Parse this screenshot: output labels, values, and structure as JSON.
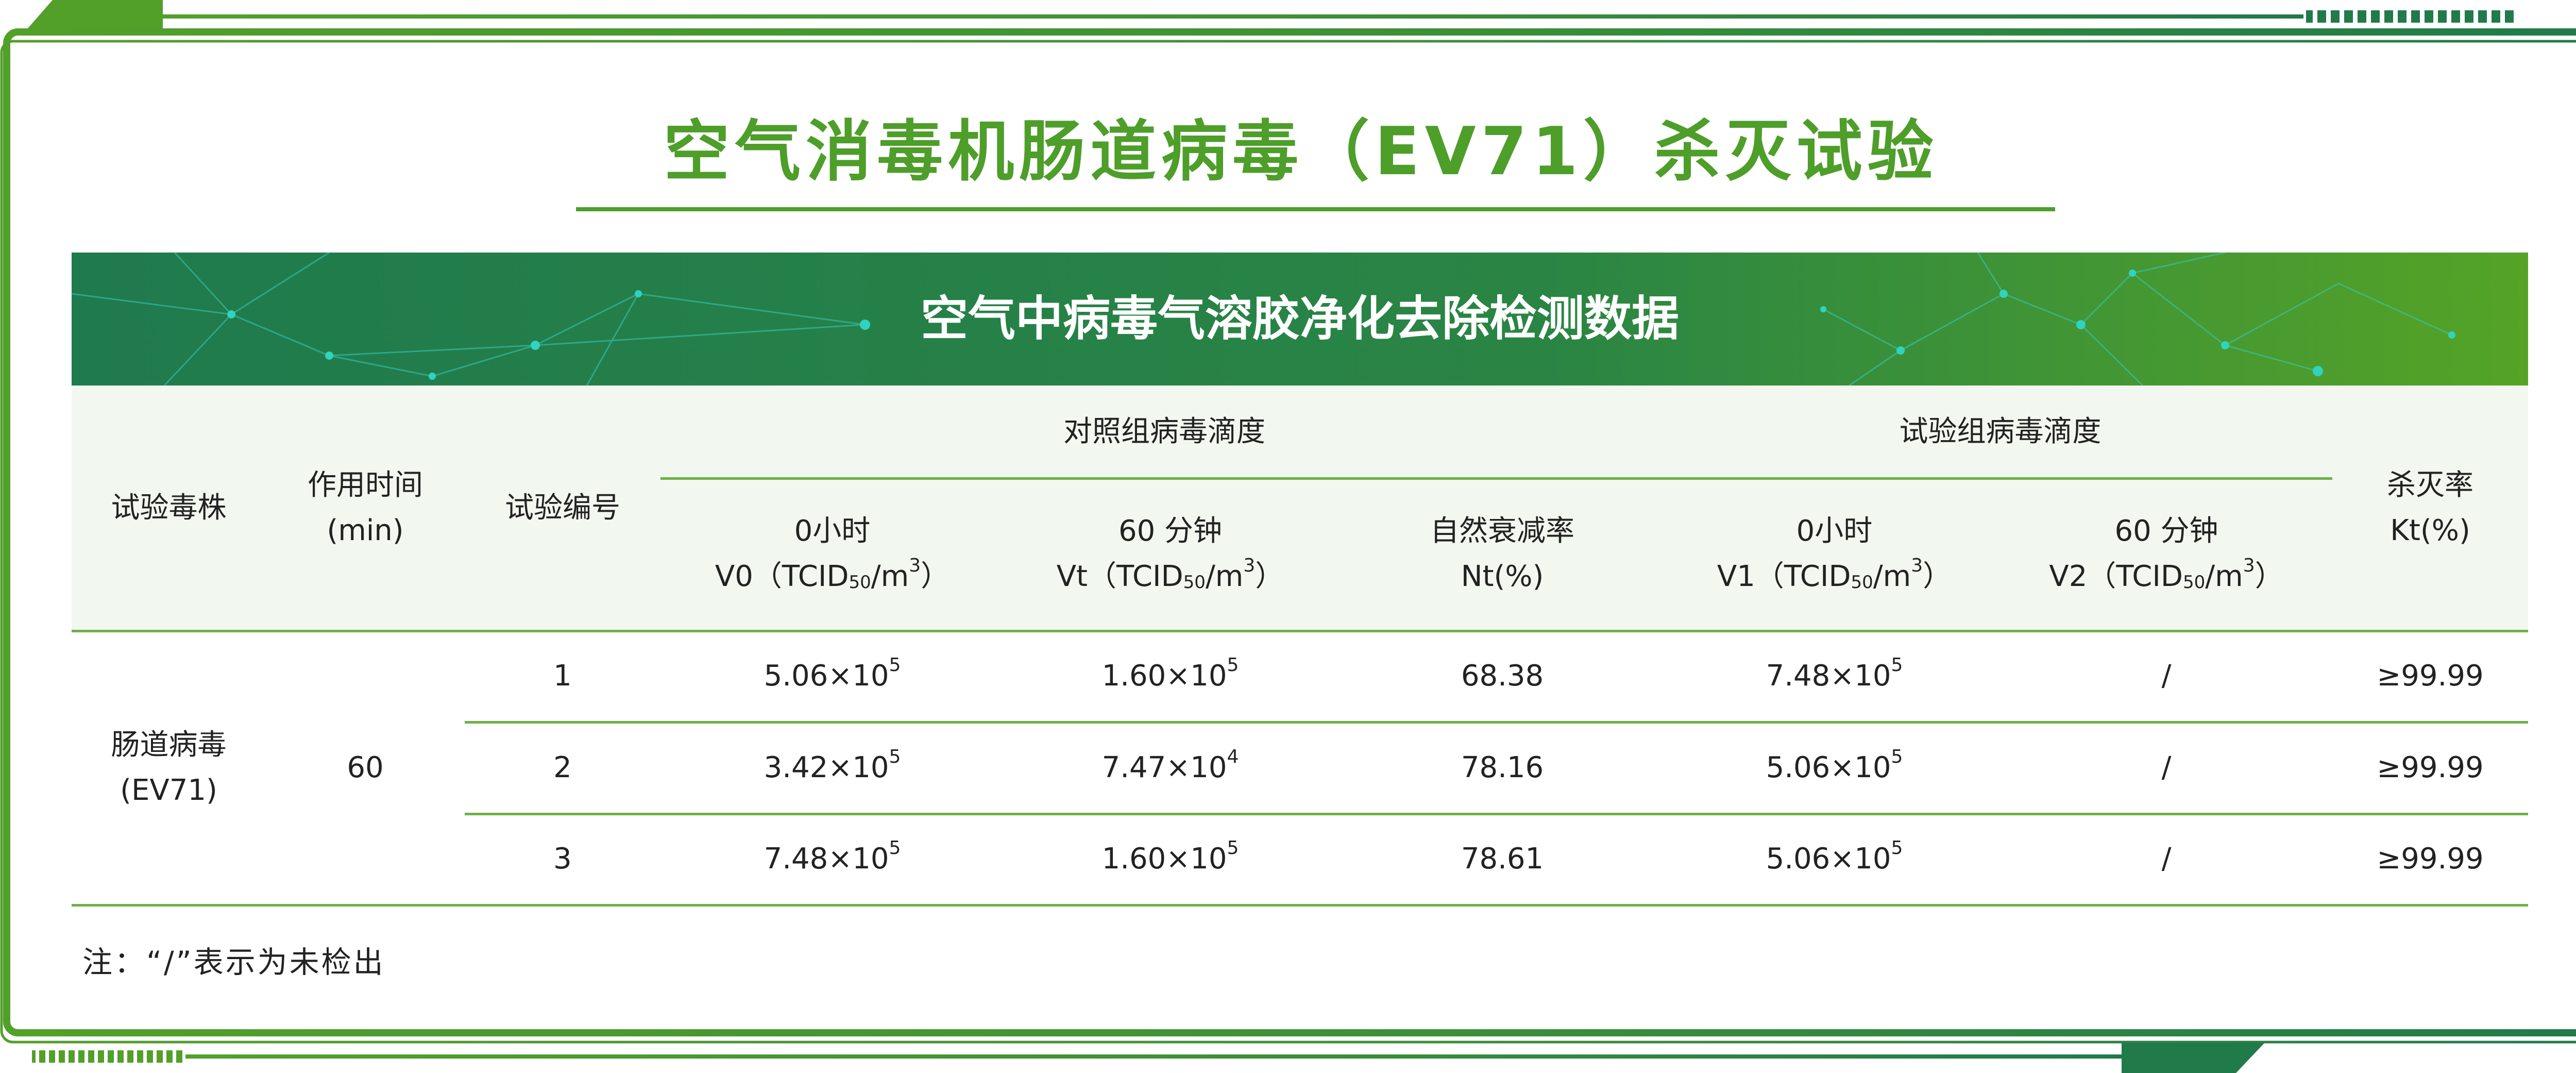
{
  "title": "空气消毒机肠道病毒（EV71）杀灭试验",
  "banner_title": "空气中病毒气溶胶净化去除检测数据",
  "colors": {
    "light_green": "#52a02a",
    "dark_green": "#217a4a",
    "header_bg": "#f2f8ef",
    "accent_dots": "#2fd3c0"
  },
  "table": {
    "headers": {
      "strain": "试验毒株",
      "time_l1": "作用时间",
      "time_l2": "(min)",
      "test_no": "试验编号",
      "control_group": "对照组病毒滴度",
      "test_group": "试验组病毒滴度",
      "v0": {
        "l1": "0小时",
        "pre": "V0（TCID",
        "sub": "50",
        "mid": "/m",
        "sup": "3",
        "post": "）"
      },
      "vt": {
        "l1": "60 分钟",
        "pre": "Vt（TCID",
        "sub": "50",
        "mid": "/m",
        "sup": "3",
        "post": "）"
      },
      "nt": {
        "l1": "自然衰减率",
        "l2": "Nt(%)"
      },
      "v1": {
        "l1": "0小时",
        "pre": "V1（TCID",
        "sub": "50",
        "mid": "/m",
        "sup": "3",
        "post": "）"
      },
      "v2": {
        "l1": "60 分钟",
        "pre": "V2（TCID",
        "sub": "50",
        "mid": "/m",
        "sup": "3",
        "post": "）"
      },
      "kt": {
        "l1": "杀灭率",
        "l2": "Kt(%)"
      }
    },
    "strain_l1": "肠道病毒",
    "strain_l2": "(EV71)",
    "time": "60",
    "rows": [
      {
        "no": "1",
        "v0": {
          "b": "5.06×10",
          "e": "5"
        },
        "vt": {
          "b": "1.60×10",
          "e": "5"
        },
        "nt": "68.38",
        "v1": {
          "b": "7.48×10",
          "e": "5"
        },
        "v2": "/",
        "kt": "≥99.99"
      },
      {
        "no": "2",
        "v0": {
          "b": "3.42×10",
          "e": "5"
        },
        "vt": {
          "b": "7.47×10",
          "e": "4"
        },
        "nt": "78.16",
        "v1": {
          "b": "5.06×10",
          "e": "5"
        },
        "v2": "/",
        "kt": "≥99.99"
      },
      {
        "no": "3",
        "v0": {
          "b": "7.48×10",
          "e": "5"
        },
        "vt": {
          "b": "1.60×10",
          "e": "5"
        },
        "nt": "78.61",
        "v1": {
          "b": "5.06×10",
          "e": "5"
        },
        "v2": "/",
        "kt": "≥99.99"
      }
    ]
  },
  "note": "注：“/”表示为未检出"
}
